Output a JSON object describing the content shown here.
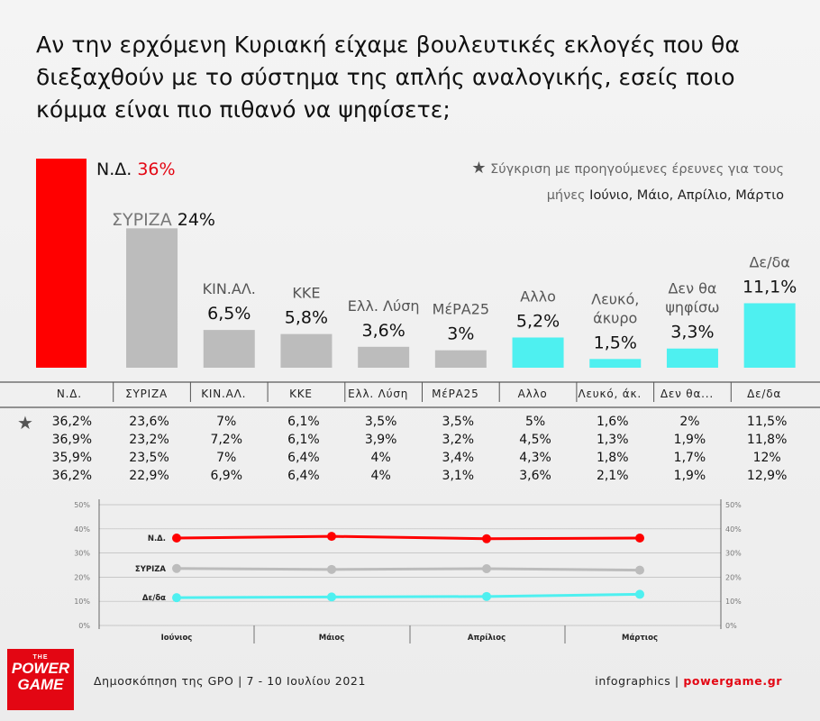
{
  "title": "Αν την ερχόμενη Κυριακή είχαμε βουλευτικές εκλογές που θα διεξαχθούν με το σύστημα της απλής αναλογικής, εσείς ποιο κόμμα είναι πιο πιθανό να ψηφίσετε;",
  "note": {
    "star": "★",
    "text": "Σύγκριση με προηγούμενες έρευνες για τους μήνες",
    "months": "Ιούνιο, Μάιο, Απρίλιο, Μάρτιο"
  },
  "colors": {
    "red": "#ff0000",
    "gray": "#bcbcbc",
    "cyan": "#4ef0f0",
    "text": "#111111",
    "muted": "#666666"
  },
  "footer": {
    "left": "Δημοσκόπηση της GPO | 7 - 10 Ιουλίου 2021",
    "right_prefix": "infographics | ",
    "site": "powergame.gr"
  },
  "logo": {
    "the": "THE",
    "line1": "POWER",
    "line2": "GAME"
  },
  "chart_data": [
    {
      "type": "bar",
      "categories": [
        "Ν.Δ.",
        "ΣΥΡΙΖΑ",
        "ΚΙΝ.ΑΛ.",
        "ΚΚΕ",
        "Ελλ. Λύση",
        "ΜέΡΑ25",
        "Αλλο",
        "Λευκό, άκυρο",
        "Δεν θα ψηφίσω",
        "Δε/δα"
      ],
      "bar_labels": [
        [
          "Ν.Δ."
        ],
        [
          "ΣΥΡΙΖΑ"
        ],
        [
          "ΚΙΝ.ΑΛ."
        ],
        [
          "ΚΚΕ"
        ],
        [
          "Ελλ. Λύση"
        ],
        [
          "ΜέΡΑ25"
        ],
        [
          "Αλλο"
        ],
        [
          "Λευκό,",
          "άκυρο"
        ],
        [
          "Δεν θα",
          "ψηφίσω"
        ],
        [
          "Δε/δα"
        ]
      ],
      "value_labels": [
        "36%",
        "24%",
        "6,5%",
        "5,8%",
        "3,6%",
        "3%",
        "5,2%",
        "1,5%",
        "3,3%",
        "11,1%"
      ],
      "values": [
        36,
        24,
        6.5,
        5.8,
        3.6,
        3,
        5.2,
        1.5,
        3.3,
        11.1
      ],
      "bar_colors": [
        "red",
        "gray",
        "gray",
        "gray",
        "gray",
        "gray",
        "cyan",
        "cyan",
        "cyan",
        "cyan"
      ],
      "ylim": [
        0,
        36
      ]
    },
    {
      "type": "table",
      "star": "★",
      "columns": [
        "Ν.Δ.",
        "ΣΥΡΙΖΑ",
        "ΚΙΝ.ΑΛ.",
        "ΚΚΕ",
        "Ελλ. Λύση",
        "ΜέΡΑ25",
        "Αλλο",
        "Λευκό, άκ.",
        "Δεν θα...",
        "Δε/δα"
      ],
      "rows": [
        [
          "36,2%",
          "23,6%",
          "7%",
          "6,1%",
          "3,5%",
          "3,5%",
          "5%",
          "1,6%",
          "2%",
          "11,5%"
        ],
        [
          "36,9%",
          "23,2%",
          "7,2%",
          "6,1%",
          "3,9%",
          "3,2%",
          "4,5%",
          "1,3%",
          "1,9%",
          "11,8%"
        ],
        [
          "35,9%",
          "23,5%",
          "7%",
          "6,4%",
          "4%",
          "3,4%",
          "4,3%",
          "1,8%",
          "1,7%",
          "12%"
        ],
        [
          "36,2%",
          "22,9%",
          "6,9%",
          "6,4%",
          "4%",
          "3,1%",
          "3,6%",
          "2,1%",
          "1,9%",
          "12,9%"
        ]
      ]
    },
    {
      "type": "line",
      "categories": [
        "Ιούνιος",
        "Μάιος",
        "Απρίλιος",
        "Μάρτιος"
      ],
      "yticks": [
        "0%",
        "10%",
        "20%",
        "30%",
        "40%",
        "50%"
      ],
      "ylim": [
        0,
        50
      ],
      "series": [
        {
          "name": "Ν.Δ.",
          "values": [
            36.2,
            36.9,
            35.9,
            36.2
          ],
          "color": "red"
        },
        {
          "name": "ΣΥΡΙΖΑ",
          "values": [
            23.6,
            23.2,
            23.5,
            22.9
          ],
          "color": "gray"
        },
        {
          "name": "Δε/δα",
          "values": [
            11.5,
            11.8,
            12,
            12.9
          ],
          "color": "cyan"
        }
      ]
    }
  ]
}
